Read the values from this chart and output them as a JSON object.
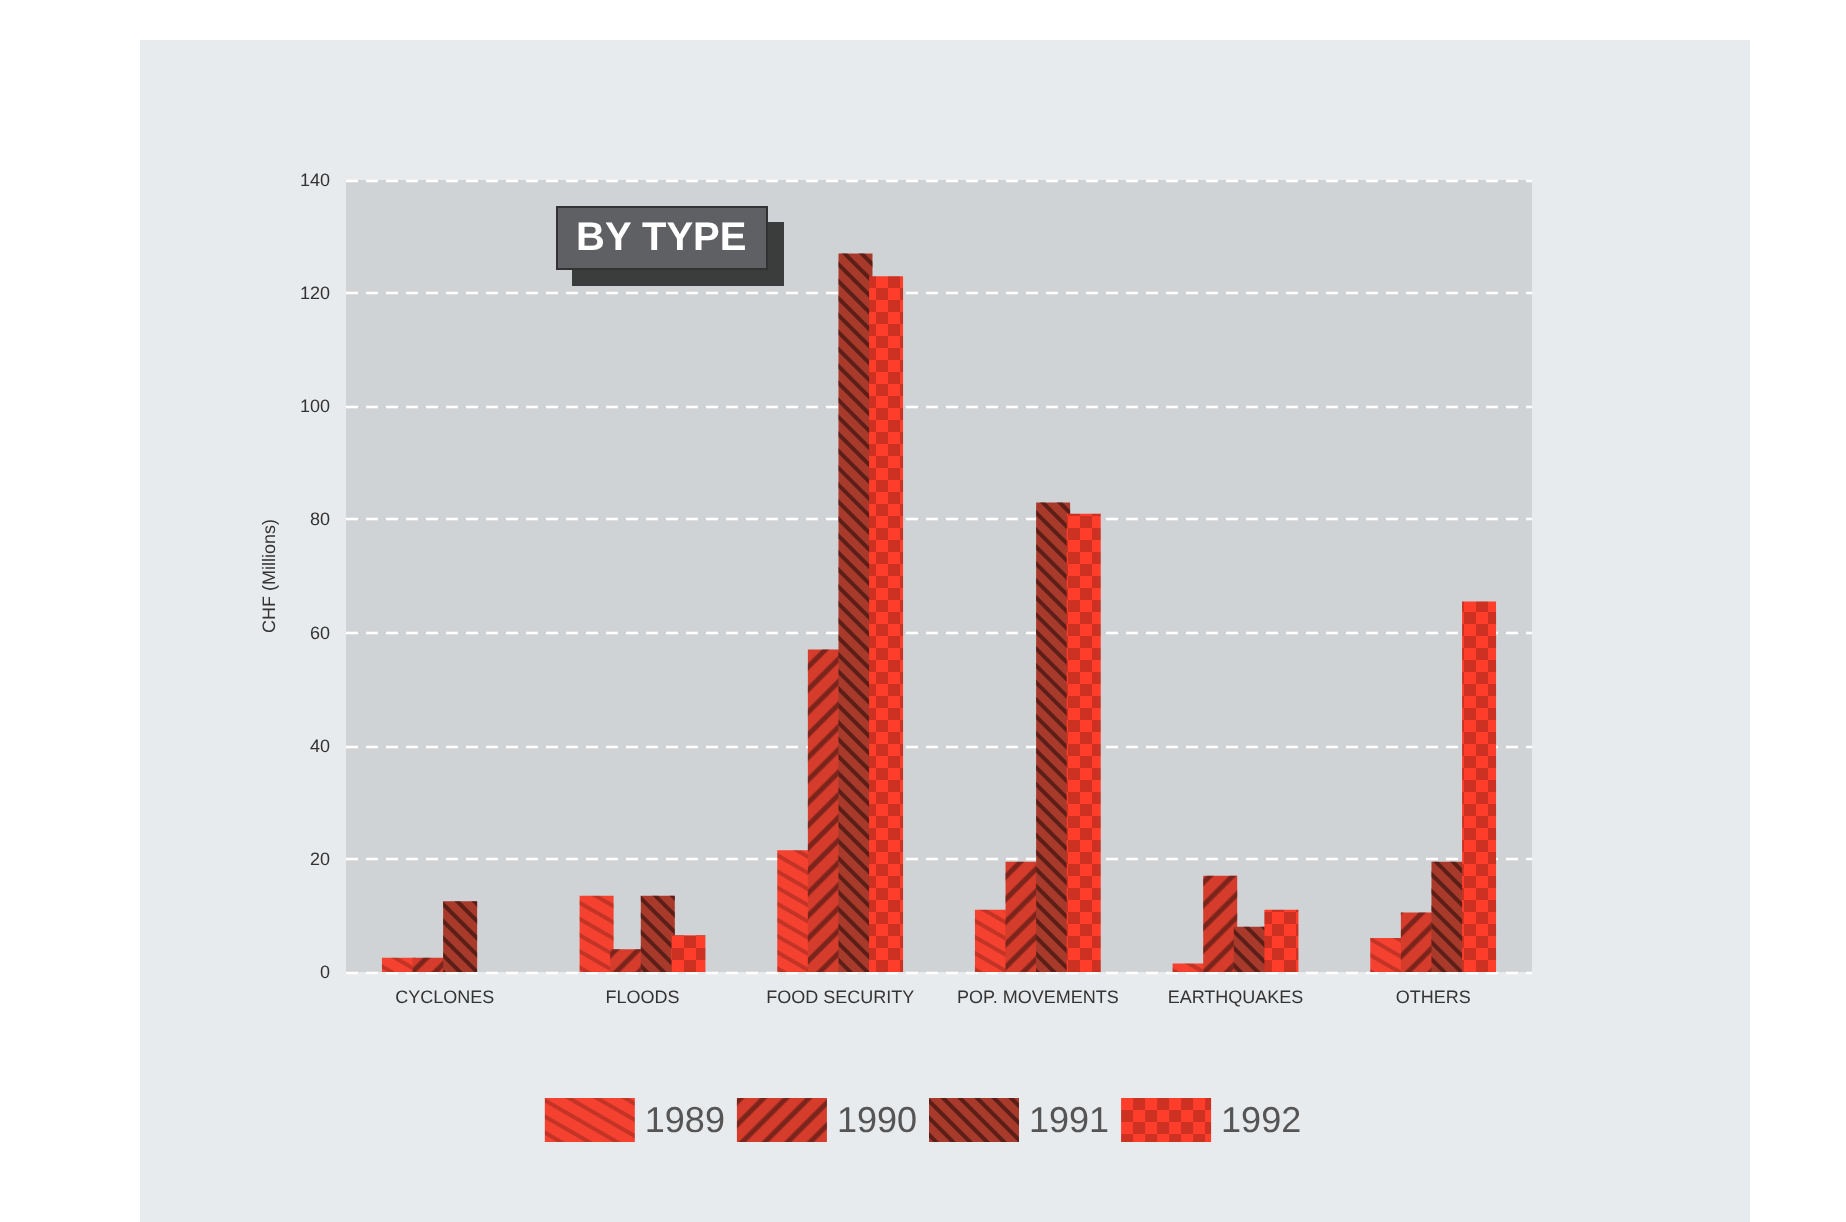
{
  "chart_data": {
    "type": "bar",
    "title": "BY TYPE",
    "ylabel": "CHF (Millions)",
    "categories": [
      "CYCLONES",
      "FLOODS",
      "FOOD SECURITY",
      "POP. MOVEMENTS",
      "EARTHQUAKES",
      "OTHERS"
    ],
    "series": [
      {
        "name": "1989",
        "color": "#f5412f",
        "values": [
          2.5,
          13.5,
          21.5,
          11,
          1.5,
          6
        ]
      },
      {
        "name": "1990",
        "color": "#d63c2c",
        "values": [
          2.5,
          4,
          57,
          19.5,
          17,
          10.5
        ]
      },
      {
        "name": "1991",
        "color": "#a83a2c",
        "values": [
          12.5,
          13.5,
          127,
          83,
          8,
          19.5
        ]
      },
      {
        "name": "1992",
        "color": "#ff3d2b",
        "values": [
          0,
          6.5,
          123,
          81,
          11,
          65.5
        ]
      }
    ],
    "ylim": [
      0,
      140
    ],
    "yticks": [
      0,
      20,
      40,
      60,
      80,
      100,
      120,
      140
    ],
    "grid": "y",
    "legend": "bottom"
  }
}
